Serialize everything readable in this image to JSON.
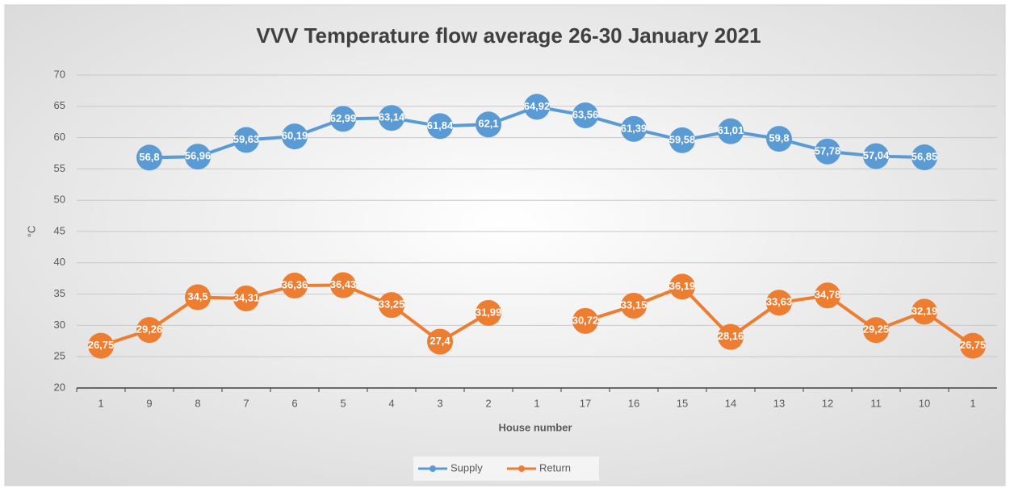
{
  "chart_data": {
    "type": "line",
    "title": "VVV Temperature flow average 26-30 January 2021",
    "xlabel": "House number",
    "ylabel": "°C",
    "categories": [
      "1",
      "9",
      "8",
      "7",
      "6",
      "5",
      "4",
      "3",
      "2",
      "1",
      "17",
      "16",
      "15",
      "14",
      "13",
      "12",
      "11",
      "10",
      "1"
    ],
    "series": [
      {
        "name": "Supply",
        "color": "#5b9bd5",
        "values": [
          null,
          56.8,
          56.96,
          59.63,
          60.19,
          62.99,
          63.14,
          61.84,
          62.1,
          64.92,
          63.56,
          61.39,
          59.58,
          61.01,
          59.8,
          57.78,
          57.04,
          56.85,
          null
        ],
        "value_labels": [
          null,
          "56,8",
          "56,96",
          "59,63",
          "60,19",
          "62,99",
          "63,14",
          "61,84",
          "62,1",
          "64,92",
          "63,56",
          "61,39",
          "59,58",
          "61,01",
          "59,8",
          "57,78",
          "57,04",
          "56,85",
          null
        ]
      },
      {
        "name": "Return",
        "color": "#ed7d31",
        "values": [
          26.75,
          29.26,
          34.5,
          34.31,
          36.36,
          36.43,
          33.25,
          27.4,
          31.99,
          null,
          30.72,
          33.15,
          36.19,
          28.16,
          33.63,
          34.78,
          29.25,
          32.19,
          26.75
        ],
        "value_labels": [
          "26,75",
          "29,26",
          "34,5",
          "34,31",
          "36,36",
          "36,43",
          "33,25",
          "27,4",
          "31,99",
          null,
          "30,72",
          "33,15",
          "36,19",
          "28,16",
          "33,63",
          "34,78",
          "29,25",
          "32,19",
          "26,75"
        ]
      }
    ],
    "ylim": [
      20,
      70
    ],
    "yticks": [
      20,
      25,
      30,
      35,
      40,
      45,
      50,
      55,
      60,
      65,
      70
    ],
    "grid": true,
    "legend": "bottom"
  }
}
